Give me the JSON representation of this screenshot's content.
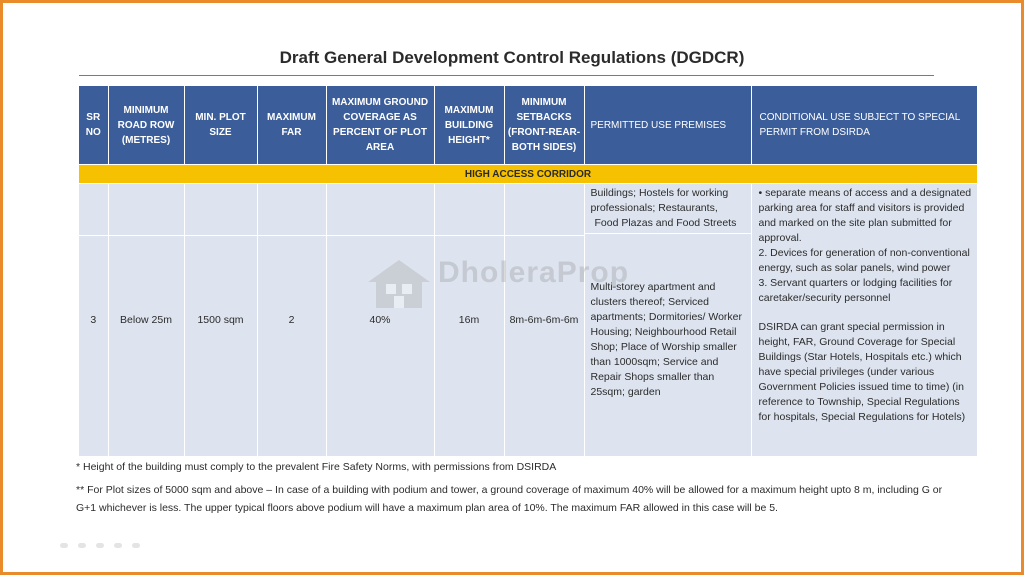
{
  "title": "Draft General Development Control Regulations (DGDCR)",
  "table": {
    "headers": [
      "SR NO",
      "MINIMUM ROAD ROW (METRES)",
      "MIN. PLOT SIZE",
      "MAXIMUM FAR",
      "MAXIMUM GROUND COVERAGE AS PERCENT OF PLOT AREA",
      "MAXIMUM BUILDING HEIGHT*",
      "MINIMUM SETBACKS (FRONT-REAR-BOTH SIDES)",
      "PERMITTED USE PREMISES",
      "CONDITIONAL USE SUBJECT TO SPECIAL PERMIT FROM DSIRDA"
    ],
    "section": "HIGH ACCESS CORRIDOR",
    "row": {
      "sr": "3",
      "road_row": "Below 25m",
      "plot_size": "1500 sqm",
      "far": "2",
      "coverage": "40%",
      "height": "16m",
      "setbacks": "8m-6m-6m-6m",
      "permitted_top": [
        "Buildings; Hostels for working",
        "professionals; Restaurants,",
        "Food Plazas and Food Streets"
      ],
      "permitted_bottom": "Multi-storey apartment and clusters thereof; Serviced apartments; Dormitories/ Worker Housing; Neighbourhood Retail Shop; Place of Worship smaller than 1000sqm; Service and Repair Shops smaller than 25sqm; garden",
      "conditional": [
        "• separate means of access and a designated parking area for staff  and visitors is provided and  marked on the site plan  submitted for approval.",
        "2. Devices for generation of non-conventional energy, such as solar panels, wind power",
        "3. Servant quarters or lodging  facilities for caretaker/security  personnel"
      ],
      "conditional_note": "DSIRDA can grant special permission in height, FAR, Ground Coverage for Special Buildings (Star Hotels, Hospitals etc.) which have special privileges (under various Government Policies issued time to time) (in reference to Township, Special Regulations for hospitals, Special Regulations for Hotels)"
    }
  },
  "footnotes": {
    "height": "* Height of the building must comply to the prevalent Fire Safety Norms, with permissions from DSIRDA",
    "plot": "** For Plot sizes of 5000 sqm and above – In case of a building with podium and tower, a ground coverage of maximum 40% will be allowed for a maximum height upto 8 m, including G or G+1 whichever is less.  The upper typical floors above podium will have a maximum plan area of 10%.  The maximum FAR allowed in this case will be 5."
  },
  "watermark": "DholeraProp",
  "colors": {
    "frame": "#e98a2b",
    "header": "#3b5d99",
    "section": "#f6c100",
    "row": "#dde4ef"
  }
}
